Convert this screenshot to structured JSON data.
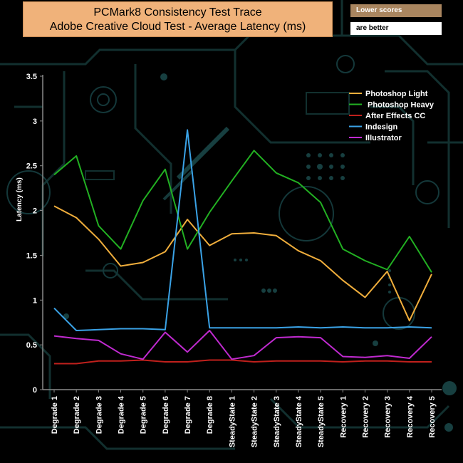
{
  "title_line1": "PCMark8 Consistency Test Trace",
  "title_line2": "Adobe Creative Cloud Test -  Average Latency (ms)",
  "note_line1": "Lower scores",
  "note_line2": "are better",
  "colors": {
    "background": "#000000",
    "circuit": "#12302f",
    "axis": "#8a8a8a",
    "text": "#ffffff"
  },
  "chart_data": {
    "type": "line",
    "ylabel": "Latency (ms)",
    "ylim": [
      0,
      3.5
    ],
    "yticks": [
      "0",
      "0.5",
      "1",
      "1.5",
      "2",
      "2.5",
      "3",
      "3.5"
    ],
    "grid": false,
    "legend_position": "top-right",
    "categories": [
      "Degrade 1",
      "Degrade 2",
      "Degrade 3",
      "Degrade 4",
      "Degrade 5",
      "Degrade 6",
      "Degrade 7",
      "Degrade 8",
      "SteadyState 1",
      "SteadyState 2",
      "SteadyState 3",
      "SteadyState 4",
      "SteadyState 5",
      "Recovery 1",
      "Recovery 2",
      "Recovery 3",
      "Recovery 4",
      "Recovery 5"
    ],
    "series": [
      {
        "name": "Photoshop Light",
        "color": "#f0ae3c",
        "values": [
          2.05,
          1.92,
          1.68,
          1.38,
          1.42,
          1.54,
          1.9,
          1.61,
          1.74,
          1.75,
          1.72,
          1.55,
          1.44,
          1.22,
          1.03,
          1.32,
          0.77,
          1.29
        ]
      },
      {
        "name": " Photoshop Heavy",
        "color": "#22b022",
        "values": [
          2.4,
          2.61,
          1.83,
          1.57,
          2.11,
          2.46,
          1.57,
          1.98,
          2.33,
          2.67,
          2.42,
          2.31,
          2.09,
          1.57,
          1.44,
          1.34,
          1.71,
          1.31
        ]
      },
      {
        "name": "After Effects CC",
        "color": "#c0201c",
        "values": [
          0.29,
          0.29,
          0.32,
          0.32,
          0.33,
          0.31,
          0.31,
          0.33,
          0.33,
          0.31,
          0.32,
          0.32,
          0.32,
          0.31,
          0.32,
          0.32,
          0.31,
          0.31
        ]
      },
      {
        "name": "Indesign",
        "color": "#3aa2e6",
        "values": [
          0.91,
          0.66,
          0.67,
          0.68,
          0.68,
          0.67,
          2.9,
          0.69,
          0.69,
          0.69,
          0.69,
          0.7,
          0.69,
          0.7,
          0.69,
          0.69,
          0.7,
          0.69
        ]
      },
      {
        "name": "Illustrator",
        "color": "#c02ad0",
        "values": [
          0.6,
          0.57,
          0.55,
          0.4,
          0.34,
          0.64,
          0.42,
          0.66,
          0.34,
          0.38,
          0.58,
          0.59,
          0.58,
          0.37,
          0.36,
          0.38,
          0.35,
          0.59
        ]
      }
    ]
  }
}
